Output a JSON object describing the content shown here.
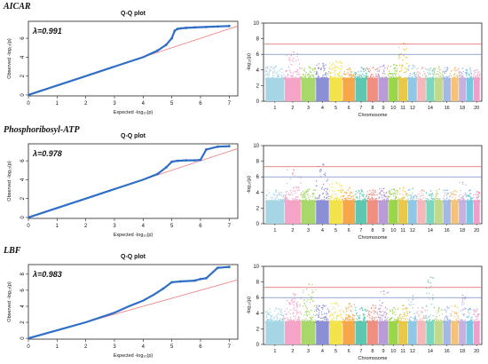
{
  "rows": [
    {
      "trait": "AICAR",
      "qq": {
        "title": "Q-Q plot",
        "lambda_label": "λ=0.991",
        "xlabel": "Expected  -log₁₀(p)",
        "ylabel": "Observed  -log₁₀(p)"
      },
      "manhattan": {
        "xlabel": "Chromosome",
        "ylabel": "-log₁₀(p)"
      }
    },
    {
      "trait": "Phosphoribosyl-ATP",
      "qq": {
        "title": "Q-Q plot",
        "lambda_label": "λ=0.978",
        "xlabel": "Expected  -log₁₀(p)",
        "ylabel": "Observed  -log₁₀(p)"
      },
      "manhattan": {
        "xlabel": "Chromosome",
        "ylabel": "-log₁₀(p)"
      }
    },
    {
      "trait": "LBF",
      "qq": {
        "title": "Q-Q plot",
        "lambda_label": "λ=0.983",
        "xlabel": "Expected  -log₁₀(p)",
        "ylabel": "Observed  -log₁₀(p)"
      },
      "manhattan": {
        "xlabel": "Chromosome",
        "ylabel": "-log₁₀(p)"
      }
    }
  ],
  "chart_data": [
    {
      "type": "scatter",
      "trait": "AICAR",
      "plot": "qq",
      "title": "Q-Q plot",
      "lambda": 0.991,
      "xlabel": "Expected  -log₁₀(p)",
      "ylabel": "Observed  -log₁₀(p)",
      "xlim": [
        0,
        7.3
      ],
      "ylim": [
        -0.1,
        7.8
      ],
      "x_ticks": [
        0,
        1,
        2,
        3,
        4,
        5,
        6,
        7
      ],
      "y_ticks": [
        0,
        2,
        4,
        6
      ],
      "expected_line": {
        "color": "#f08080"
      },
      "points": {
        "x": [
          0,
          1,
          2,
          3,
          4,
          4.5,
          4.8,
          5.0,
          5.1,
          5.2,
          5.3,
          5.5,
          5.8,
          6.2,
          6.6,
          7.0
        ],
        "y": [
          0,
          1.0,
          2.0,
          3.0,
          4.0,
          4.7,
          5.3,
          6.0,
          6.8,
          7.0,
          7.05,
          7.1,
          7.15,
          7.2,
          7.25,
          7.3
        ]
      },
      "point_color": "#2f6ec7"
    },
    {
      "type": "scatter",
      "trait": "AICAR",
      "plot": "manhattan",
      "xlabel": "Chromosome",
      "ylabel": "-log₁₀(p)",
      "ylim": [
        0,
        10
      ],
      "y_ticks": [
        0,
        2,
        4,
        6,
        8,
        10
      ],
      "chromosome_labels": [
        "1",
        "2",
        "3",
        "4",
        "5",
        "6",
        "7",
        "8",
        "9",
        "10",
        "11",
        "12",
        "14",
        "16",
        "18",
        "20"
      ],
      "thresholds": [
        {
          "value": 7.3,
          "color": "#e06060"
        },
        {
          "value": 6.0,
          "color": "#5a6fb8"
        }
      ],
      "chromosome_peaks": [
        4.5,
        6.3,
        4.4,
        4.8,
        5.1,
        4.2,
        4.3,
        4.3,
        4.6,
        4.7,
        7.4,
        4.6,
        4.3,
        4.2,
        4.4,
        4.3,
        4.3,
        4.2,
        4.2,
        4.0
      ]
    },
    {
      "type": "scatter",
      "trait": "Phosphoribosyl-ATP",
      "plot": "qq",
      "title": "Q-Q plot",
      "lambda": 0.978,
      "xlabel": "Expected  -log₁₀(p)",
      "ylabel": "Observed  -log₁₀(p)",
      "xlim": [
        0,
        7.3
      ],
      "ylim": [
        -0.1,
        7.8
      ],
      "x_ticks": [
        0,
        1,
        2,
        3,
        4,
        5,
        6,
        7
      ],
      "y_ticks": [
        0,
        2,
        4,
        6
      ],
      "expected_line": {
        "color": "#f08080"
      },
      "points": {
        "x": [
          0,
          1,
          2,
          3,
          4,
          4.5,
          4.8,
          5.0,
          5.2,
          5.5,
          5.8,
          6.0,
          6.2,
          6.6,
          7.0
        ],
        "y": [
          0,
          1.0,
          2.0,
          3.0,
          4.0,
          4.6,
          5.3,
          5.9,
          6.0,
          6.05,
          6.05,
          6.1,
          7.2,
          7.5,
          7.55
        ]
      },
      "point_color": "#2f6ec7"
    },
    {
      "type": "scatter",
      "trait": "Phosphoribosyl-ATP",
      "plot": "manhattan",
      "xlabel": "Chromosome",
      "ylabel": "-log₁₀(p)",
      "ylim": [
        0,
        10
      ],
      "y_ticks": [
        0,
        2,
        4,
        6,
        8,
        10
      ],
      "chromosome_labels": [
        "1",
        "2",
        "3",
        "4",
        "5",
        "6",
        "7",
        "8",
        "9",
        "10",
        "11",
        "12",
        "14",
        "16",
        "18",
        "20"
      ],
      "thresholds": [
        {
          "value": 7.3,
          "color": "#e06060"
        },
        {
          "value": 6.0,
          "color": "#5a6fb8"
        }
      ],
      "chromosome_peaks": [
        4.3,
        6.9,
        4.4,
        7.6,
        5.2,
        4.6,
        4.3,
        4.3,
        4.5,
        4.4,
        4.6,
        4.5,
        4.3,
        4.2,
        4.4,
        4.3,
        4.2,
        5.3,
        4.3,
        4.1
      ]
    },
    {
      "type": "scatter",
      "trait": "LBF",
      "plot": "qq",
      "title": "Q-Q plot",
      "lambda": 0.983,
      "xlabel": "Expected  -log₁₀(p)",
      "ylabel": "Observed  -log₁₀(p)",
      "xlim": [
        0,
        7.3
      ],
      "ylim": [
        -0.1,
        9.2
      ],
      "x_ticks": [
        0,
        1,
        2,
        3,
        4,
        5,
        6,
        7
      ],
      "y_ticks": [
        0,
        2,
        4,
        6,
        8
      ],
      "expected_line": {
        "color": "#f08080"
      },
      "points": {
        "x": [
          0,
          1,
          2,
          3,
          3.5,
          4.0,
          4.4,
          4.7,
          5.0,
          5.3,
          5.8,
          6.0,
          6.2,
          6.6,
          7.0
        ],
        "y": [
          0,
          1.0,
          2.0,
          3.2,
          4.0,
          4.7,
          5.5,
          6.2,
          7.0,
          7.1,
          7.2,
          7.4,
          7.5,
          8.8,
          8.9
        ]
      },
      "point_color": "#2f6ec7"
    },
    {
      "type": "scatter",
      "trait": "LBF",
      "plot": "manhattan",
      "xlabel": "Chromosome",
      "ylabel": "-log₁₀(p)",
      "ylim": [
        0,
        10
      ],
      "y_ticks": [
        0,
        2,
        4,
        6,
        8,
        10
      ],
      "chromosome_labels": [
        "1",
        "2",
        "3",
        "4",
        "5",
        "6",
        "7",
        "8",
        "9",
        "10",
        "11",
        "12",
        "14",
        "16",
        "18",
        "20"
      ],
      "thresholds": [
        {
          "value": 7.3,
          "color": "#e06060"
        },
        {
          "value": 6.0,
          "color": "#5a6fb8"
        }
      ],
      "chromosome_peaks": [
        4.6,
        6.5,
        7.7,
        5.0,
        5.3,
        5.2,
        4.7,
        5.0,
        6.8,
        4.7,
        5.0,
        6.2,
        4.7,
        8.6,
        4.7,
        4.8,
        5.0,
        6.3,
        4.6,
        4.5
      ]
    }
  ],
  "chromosome_colors": [
    "#a6d6e6",
    "#f5a3c7",
    "#a8d86b",
    "#8b8fd6",
    "#f3e24a",
    "#f5a74a",
    "#5ec7b0",
    "#f08e80",
    "#b99bd6",
    "#9bd64a",
    "#e8c84a",
    "#8fc8e6",
    "#f5b8b8",
    "#7fd6c0",
    "#c2d88a",
    "#a3b8e6",
    "#f5c27a",
    "#c6b0e0",
    "#76c7e0",
    "#f0a0c8"
  ]
}
